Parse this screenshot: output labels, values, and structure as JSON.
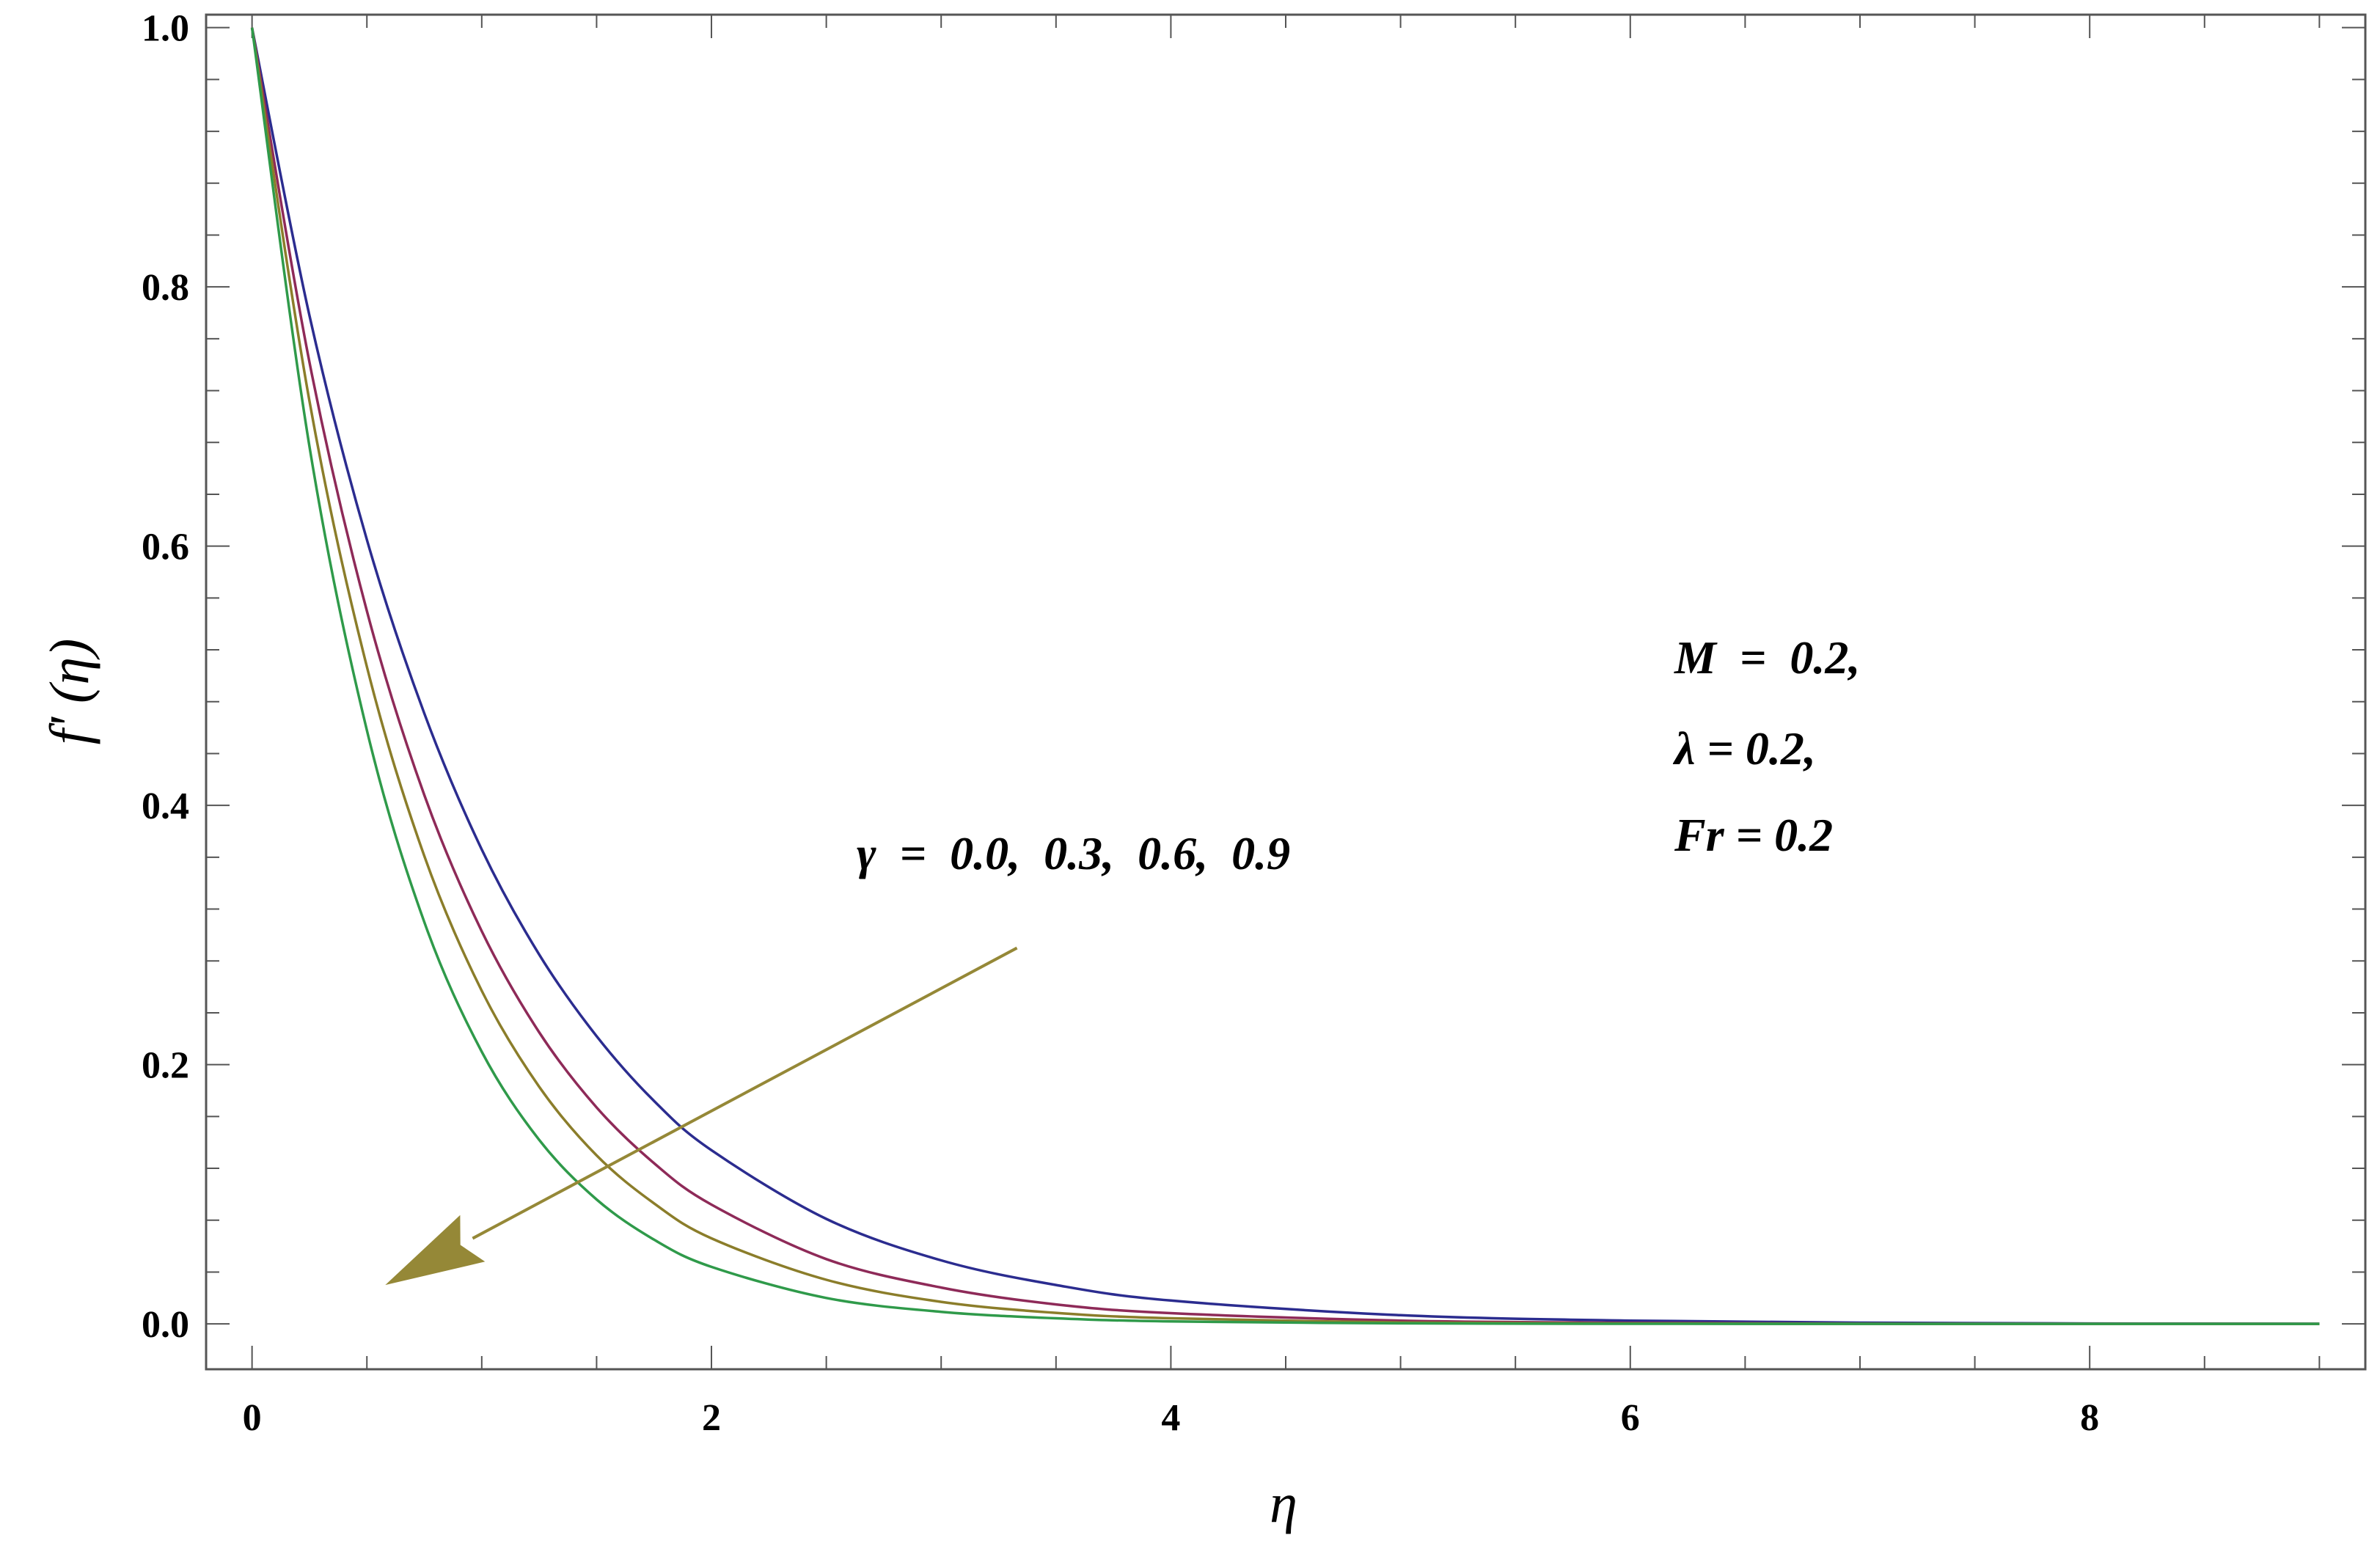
{
  "chart_data": {
    "type": "line",
    "xlabel": "η",
    "ylabel": "f' (η)",
    "xlim": [
      -0.2,
      9.2
    ],
    "ylim": [
      -0.035,
      1.01
    ],
    "x_ticks": [
      0,
      2,
      4,
      6,
      8
    ],
    "x_tick_labels": [
      "0",
      "2",
      "4",
      "6",
      "8"
    ],
    "y_ticks": [
      0.0,
      0.2,
      0.4,
      0.6,
      0.8,
      1.0
    ],
    "y_tick_labels": [
      "0.0",
      "0.2",
      "0.4",
      "0.6",
      "0.8",
      "1.0"
    ],
    "grid": false,
    "series": [
      {
        "color": "#2b2c8f",
        "x": [
          0,
          0.25,
          0.5,
          0.75,
          1.0,
          1.25,
          1.5,
          1.75,
          2.0,
          2.5,
          3.0,
          3.5,
          4.0,
          5.0,
          6.0,
          7.0,
          8.0,
          9.0
        ],
        "y": [
          1.0,
          0.778,
          0.605,
          0.471,
          0.366,
          0.285,
          0.222,
          0.172,
          0.134,
          0.081,
          0.049,
          0.03,
          0.018,
          0.0067,
          0.0025,
          0.0009,
          0.0003,
          0.0001
        ]
      },
      {
        "color": "#8e2a58",
        "x": [
          0,
          0.25,
          0.5,
          0.75,
          1.0,
          1.25,
          1.5,
          1.75,
          2.0,
          2.5,
          3.0,
          3.5,
          4.0,
          5.0,
          6.0,
          7.0,
          8.0,
          9.0
        ],
        "y": [
          1.0,
          0.742,
          0.55,
          0.408,
          0.303,
          0.225,
          0.167,
          0.124,
          0.092,
          0.05,
          0.028,
          0.015,
          0.0083,
          0.0025,
          0.0008,
          0.0002,
          0.0001,
          0.0
        ]
      },
      {
        "color": "#8b7d2a",
        "x": [
          0,
          0.25,
          0.5,
          0.75,
          1.0,
          1.25,
          1.5,
          1.75,
          2.0,
          2.5,
          3.0,
          3.5,
          4.0,
          5.0,
          6.0,
          7.0,
          8.0,
          9.0
        ],
        "y": [
          1.0,
          0.712,
          0.507,
          0.361,
          0.257,
          0.183,
          0.13,
          0.093,
          0.066,
          0.034,
          0.017,
          0.0085,
          0.0043,
          0.0011,
          0.0003,
          0.0001,
          0.0,
          0.0
        ]
      },
      {
        "color": "#2f9a4a",
        "x": [
          0,
          0.25,
          0.5,
          0.75,
          1.0,
          1.25,
          1.5,
          1.75,
          2.0,
          2.5,
          3.0,
          3.5,
          4.0,
          5.0,
          6.0,
          7.0,
          8.0,
          9.0
        ],
        "y": [
          1.0,
          0.677,
          0.458,
          0.31,
          0.21,
          0.142,
          0.096,
          0.065,
          0.044,
          0.02,
          0.0093,
          0.0043,
          0.0019,
          0.0004,
          0.0001,
          0.0,
          0.0,
          0.0
        ]
      }
    ],
    "arrow": {
      "color": "#958837",
      "from": [
        3.33,
        0.29
      ],
      "to": [
        0.58,
        0.03
      ]
    },
    "annotations": {
      "gamma": "γ  =  0.0,  0.3,  0.6,  0.9",
      "params": [
        "M  =  0.2,",
        "λ = 0.2,",
        "Fr = 0.2"
      ]
    }
  }
}
